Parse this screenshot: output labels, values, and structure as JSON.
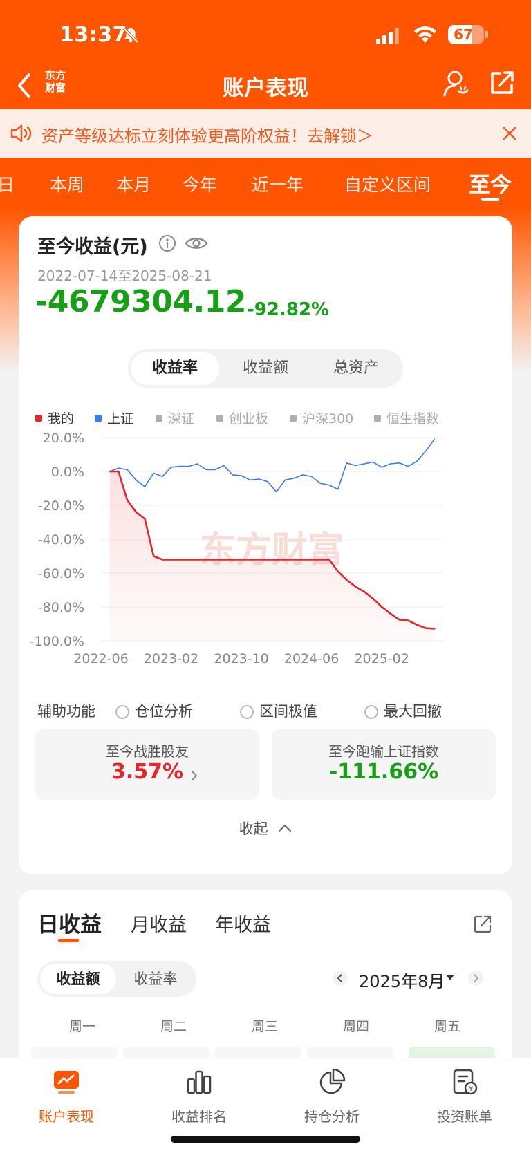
{
  "status_bar": {
    "time": "13:37",
    "battery": "67",
    "battery_fraction": 0.67
  },
  "nav": {
    "logo_line1": "东方",
    "logo_line2": "财富",
    "title": "账户表现"
  },
  "banner": {
    "text": "资产等级达标立刻体验更高阶权益！去解锁＞"
  },
  "period_tabs": [
    "日",
    "本周",
    "本月",
    "今年",
    "近一年",
    "自定义区间",
    "至今"
  ],
  "period_active": "至今",
  "summary": {
    "title": "至今收益(元)",
    "date_range": "2022-07-14至2025-08-21",
    "value": "-4679304.12",
    "pct": "-92.82%"
  },
  "metric_tabs": [
    "收益率",
    "收益额",
    "总资产"
  ],
  "legend": [
    {
      "label": "我的",
      "color": "#e6252b",
      "active": true
    },
    {
      "label": "上证",
      "color": "#3a7ce8",
      "active": true
    },
    {
      "label": "深证",
      "color": "#b0b0b0",
      "active": false
    },
    {
      "label": "创业板",
      "color": "#b0b0b0",
      "active": false
    },
    {
      "label": "沪深300",
      "color": "#b0b0b0",
      "active": false
    },
    {
      "label": "恒生指数",
      "color": "#b0b0b0",
      "active": false
    }
  ],
  "chart_data": {
    "type": "line",
    "y_ticks": [
      "20.0%",
      "0.0%",
      "-20.0%",
      "-40.0%",
      "-60.0%",
      "-80.0%",
      "-100.0%"
    ],
    "x_ticks": [
      "2022-06",
      "2023-02",
      "2023-10",
      "2024-06",
      "2025-02"
    ],
    "ylim": [
      -100,
      20
    ],
    "xlim": [
      "2022-06",
      "2025-09"
    ],
    "watermark": "东方财富",
    "series": [
      {
        "name": "我的",
        "color": "#e6252b",
        "x": [
          "2022-07",
          "2022-08",
          "2022-09",
          "2022-10",
          "2022-11",
          "2022-12",
          "2023-01",
          "2023-03",
          "2023-06",
          "2023-09",
          "2023-12",
          "2024-03",
          "2024-06",
          "2024-08",
          "2024-09",
          "2024-10",
          "2024-11",
          "2024-12",
          "2025-01",
          "2025-02",
          "2025-03",
          "2025-04",
          "2025-05",
          "2025-06",
          "2025-07",
          "2025-08"
        ],
        "y": [
          0,
          0,
          -17,
          -24,
          -28,
          -50,
          -52,
          -52,
          -52,
          -52,
          -52,
          -52,
          -52,
          -52,
          -59,
          -64,
          -68,
          -71,
          -75,
          -80,
          -84,
          -87.5,
          -88,
          -90.5,
          -92.5,
          -92.8
        ]
      },
      {
        "name": "上证",
        "color": "#3a7ce8",
        "x": [
          "2022-07",
          "2022-08",
          "2022-09",
          "2022-10",
          "2022-11",
          "2022-12",
          "2023-01",
          "2023-02",
          "2023-03",
          "2023-04",
          "2023-05",
          "2023-06",
          "2023-07",
          "2023-08",
          "2023-09",
          "2023-10",
          "2023-11",
          "2023-12",
          "2024-01",
          "2024-02",
          "2024-03",
          "2024-04",
          "2024-05",
          "2024-06",
          "2024-07",
          "2024-08",
          "2024-09",
          "2024-10",
          "2024-11",
          "2024-12",
          "2025-01",
          "2025-02",
          "2025-03",
          "2025-04",
          "2025-05",
          "2025-06",
          "2025-07",
          "2025-08"
        ],
        "y": [
          0,
          2,
          1,
          -5,
          -9,
          -1,
          -3,
          2.5,
          3,
          3,
          4.5,
          1,
          1,
          3.5,
          -2,
          -2.5,
          -5,
          -4.5,
          -6,
          -12,
          -5,
          -4,
          -2,
          -3,
          -7,
          -8,
          -10.5,
          5,
          3.5,
          4.5,
          5.5,
          2.5,
          4.5,
          5,
          3,
          6,
          12,
          19
        ]
      }
    ]
  },
  "aux": {
    "label": "辅助功能",
    "options": [
      "仓位分析",
      "区间极值",
      "最大回撤"
    ]
  },
  "stats": [
    {
      "label": "至今战胜股友",
      "value": "3.57%",
      "tone": "red"
    },
    {
      "label": "至今跑输上证指数",
      "value": "-111.66%",
      "tone": "green"
    }
  ],
  "collapse_label": "收起",
  "daily": {
    "tabs": [
      "日收益",
      "月收益",
      "年收益"
    ],
    "seg": [
      "收益额",
      "收益率"
    ],
    "month": "2025年8月",
    "weekdays": [
      "周一",
      "周二",
      "周三",
      "周四",
      "周五"
    ]
  },
  "bottom_nav": [
    "账户表现",
    "收益排名",
    "持仓分析",
    "投资账单"
  ],
  "accent": "#ff5500"
}
